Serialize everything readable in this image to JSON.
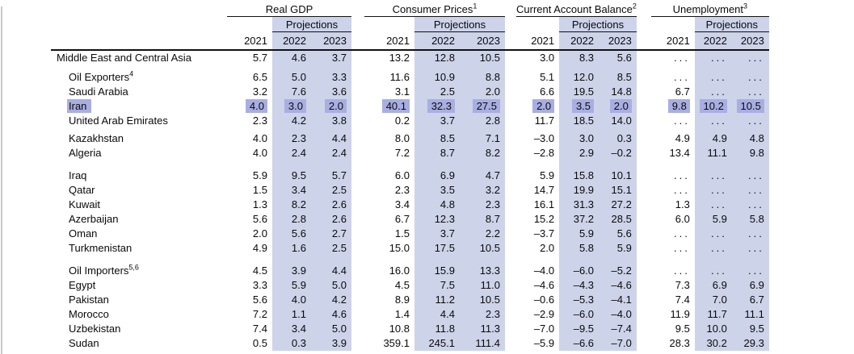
{
  "page": {
    "background": "#ffffff",
    "left_rule_color": "#c9c9c9"
  },
  "table": {
    "band_color": "#cdd3e9",
    "highlight_color": "#a9aee2",
    "projections_label": "Projections",
    "years": [
      "2021",
      "2022",
      "2023"
    ],
    "groups": [
      {
        "title": "Real GDP",
        "sup": ""
      },
      {
        "title": "Consumer Prices",
        "sup": "1"
      },
      {
        "title": "Current Account Balance",
        "sup": "2"
      },
      {
        "title": "Unemployment",
        "sup": "3"
      }
    ],
    "rows": [
      {
        "label": "Middle East and Central Asia",
        "sup": "",
        "bold": true,
        "indent": false,
        "highlight": false,
        "gap": "none",
        "values": [
          "5.7",
          "4.6",
          "3.7",
          "13.2",
          "12.8",
          "10.5",
          "3.0",
          "8.3",
          "5.6",
          "...",
          "...",
          "..."
        ]
      },
      {
        "label": "Oil Exporters",
        "sup": "4",
        "bold": true,
        "indent": true,
        "highlight": false,
        "gap": "m",
        "values": [
          "6.5",
          "5.0",
          "3.3",
          "11.6",
          "10.9",
          "8.8",
          "5.1",
          "12.0",
          "8.5",
          "...",
          "...",
          "..."
        ]
      },
      {
        "label": "Saudi Arabia",
        "sup": "",
        "bold": false,
        "indent": true,
        "highlight": false,
        "gap": "none",
        "values": [
          "3.2",
          "7.6",
          "3.6",
          "3.1",
          "2.5",
          "2.0",
          "6.6",
          "19.5",
          "14.8",
          "6.7",
          "...",
          "..."
        ]
      },
      {
        "label": "Iran",
        "sup": "",
        "bold": false,
        "indent": true,
        "highlight": true,
        "gap": "none",
        "values": [
          "4.0",
          "3.0",
          "2.0",
          "40.1",
          "32.3",
          "27.5",
          "2.0",
          "3.5",
          "2.0",
          "9.8",
          "10.2",
          "10.5"
        ]
      },
      {
        "label": "United Arab Emirates",
        "sup": "",
        "bold": false,
        "indent": true,
        "highlight": false,
        "gap": "none",
        "values": [
          "2.3",
          "4.2",
          "3.8",
          "0.2",
          "3.7",
          "2.8",
          "11.7",
          "18.5",
          "14.0",
          "...",
          "...",
          "..."
        ]
      },
      {
        "label": "Kazakhstan",
        "sup": "",
        "bold": false,
        "indent": true,
        "highlight": false,
        "gap": "s",
        "values": [
          "4.0",
          "2.3",
          "4.4",
          "8.0",
          "8.5",
          "7.1",
          "–3.0",
          "3.0",
          "0.3",
          "4.9",
          "4.9",
          "4.8"
        ]
      },
      {
        "label": "Algeria",
        "sup": "",
        "bold": false,
        "indent": true,
        "highlight": false,
        "gap": "none",
        "values": [
          "4.0",
          "2.4",
          "2.4",
          "7.2",
          "8.7",
          "8.2",
          "–2.8",
          "2.9",
          "–0.2",
          "13.4",
          "11.1",
          "9.8"
        ]
      },
      {
        "label": "Iraq",
        "sup": "",
        "bold": false,
        "indent": true,
        "highlight": false,
        "gap": "l",
        "values": [
          "5.9",
          "9.5",
          "5.7",
          "6.0",
          "6.9",
          "4.7",
          "5.9",
          "15.8",
          "10.1",
          "...",
          "...",
          "..."
        ]
      },
      {
        "label": "Qatar",
        "sup": "",
        "bold": false,
        "indent": true,
        "highlight": false,
        "gap": "none",
        "values": [
          "1.5",
          "3.4",
          "2.5",
          "2.3",
          "3.5",
          "3.2",
          "14.7",
          "19.9",
          "15.1",
          "...",
          "...",
          "..."
        ]
      },
      {
        "label": "Kuwait",
        "sup": "",
        "bold": false,
        "indent": true,
        "highlight": false,
        "gap": "none",
        "values": [
          "1.3",
          "8.2",
          "2.6",
          "3.4",
          "4.8",
          "2.3",
          "16.1",
          "31.3",
          "27.2",
          "1.3",
          "...",
          "..."
        ]
      },
      {
        "label": "Azerbaijan",
        "sup": "",
        "bold": false,
        "indent": true,
        "highlight": false,
        "gap": "none",
        "values": [
          "5.6",
          "2.8",
          "2.6",
          "6.7",
          "12.3",
          "8.7",
          "15.2",
          "37.2",
          "28.5",
          "6.0",
          "5.9",
          "5.8"
        ]
      },
      {
        "label": "Oman",
        "sup": "",
        "bold": false,
        "indent": true,
        "highlight": false,
        "gap": "none",
        "values": [
          "2.0",
          "5.6",
          "2.7",
          "1.5",
          "3.7",
          "2.2",
          "–3.7",
          "5.9",
          "5.6",
          "...",
          "...",
          "..."
        ]
      },
      {
        "label": "Turkmenistan",
        "sup": "",
        "bold": false,
        "indent": true,
        "highlight": false,
        "gap": "none",
        "values": [
          "4.9",
          "1.6",
          "2.5",
          "15.0",
          "17.5",
          "10.5",
          "2.0",
          "5.8",
          "5.9",
          "...",
          "...",
          "..."
        ]
      },
      {
        "label": "Oil Importers",
        "sup": "5,6",
        "bold": true,
        "indent": true,
        "highlight": false,
        "gap": "l",
        "values": [
          "4.5",
          "3.9",
          "4.4",
          "16.0",
          "15.9",
          "13.3",
          "–4.0",
          "–6.0",
          "–5.2",
          "...",
          "...",
          "..."
        ]
      },
      {
        "label": "Egypt",
        "sup": "",
        "bold": false,
        "indent": true,
        "highlight": false,
        "gap": "none",
        "values": [
          "3.3",
          "5.9",
          "5.0",
          "4.5",
          "7.5",
          "11.0",
          "–4.6",
          "–4.3",
          "–4.6",
          "7.3",
          "6.9",
          "6.9"
        ]
      },
      {
        "label": "Pakistan",
        "sup": "",
        "bold": false,
        "indent": true,
        "highlight": false,
        "gap": "none",
        "values": [
          "5.6",
          "4.0",
          "4.2",
          "8.9",
          "11.2",
          "10.5",
          "–0.6",
          "–5.3",
          "–4.1",
          "7.4",
          "7.0",
          "6.7"
        ]
      },
      {
        "label": "Morocco",
        "sup": "",
        "bold": false,
        "indent": true,
        "highlight": false,
        "gap": "none",
        "values": [
          "7.2",
          "1.1",
          "4.6",
          "1.4",
          "4.4",
          "2.3",
          "–2.9",
          "–6.0",
          "–4.0",
          "11.9",
          "11.7",
          "11.1"
        ]
      },
      {
        "label": "Uzbekistan",
        "sup": "",
        "bold": false,
        "indent": true,
        "highlight": false,
        "gap": "none",
        "values": [
          "7.4",
          "3.4",
          "5.0",
          "10.8",
          "11.8",
          "11.3",
          "–7.0",
          "–9.5",
          "–7.4",
          "9.5",
          "10.0",
          "9.5"
        ]
      },
      {
        "label": "Sudan",
        "sup": "",
        "bold": false,
        "indent": true,
        "highlight": false,
        "gap": "none",
        "values": [
          "0.5",
          "0.3",
          "3.9",
          "359.1",
          "245.1",
          "111.4",
          "–5.9",
          "–6.6",
          "–7.0",
          "28.3",
          "30.2",
          "29.3"
        ]
      }
    ]
  }
}
